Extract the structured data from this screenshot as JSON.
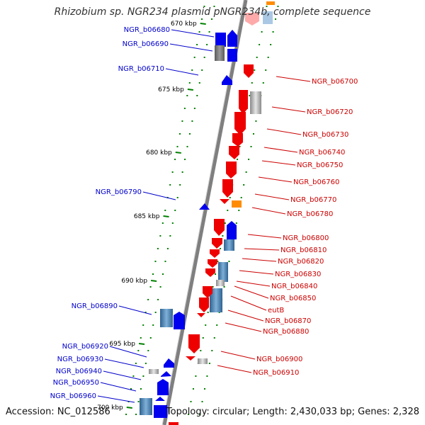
{
  "title": "Rhizobium sp. NGR234 plasmid pNGR234b, complete sequence",
  "footer": {
    "accession": "Accession: NC_012586",
    "summary": "Topology: circular; Length: 2,430,033 bp; Genes: 2,328"
  },
  "colors": {
    "forward_gene": "#0000ee",
    "reverse_gene": "#ee0000",
    "forward_label": "#0000cc",
    "reverse_label": "#cc0000",
    "steelblue_feature": "#4682b4",
    "grey_feature": "#a0a0a0",
    "orange_feature": "#ff8c00",
    "backbone": "#7f7f7f",
    "tick": "#008000"
  },
  "ruler": {
    "unit": "kbp",
    "ticks": [
      "670 kbp",
      "675 kbp",
      "680 kbp",
      "685 kbp",
      "690 kbp",
      "695 kbp",
      "700 kbp"
    ]
  },
  "left_labels": [
    "NGR_b06680",
    "NGR_b06690",
    "NGR_b06710",
    "NGR_b06790",
    "NGR_b06890",
    "NGR_b06920",
    "NGR_b06930",
    "NGR_b06940",
    "NGR_b06950",
    "NGR_b06960"
  ],
  "right_labels": [
    "NGR_b06700",
    "NGR_b06720",
    "NGR_b06730",
    "NGR_b06740",
    "NGR_b06750",
    "NGR_b06760",
    "NGR_b06770",
    "NGR_b06780",
    "NGR_b06800",
    "NGR_b06810",
    "NGR_b06820",
    "NGR_b06830",
    "NGR_b06840",
    "NGR_b06850",
    "eutB",
    "NGR_b06870",
    "NGR_b06880",
    "NGR_b06900",
    "NGR_b06910"
  ]
}
